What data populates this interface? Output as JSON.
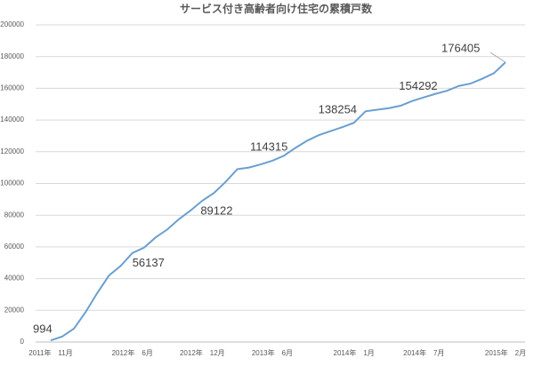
{
  "chart_data": {
    "type": "line",
    "title": "サービス付き高齢者向け住宅の累積戸数",
    "categories": [
      "2011年　11月",
      null,
      null,
      null,
      null,
      null,
      null,
      "2012年　6月",
      null,
      null,
      null,
      null,
      null,
      "2012年　12月",
      null,
      null,
      null,
      null,
      null,
      "2013年　6月",
      null,
      null,
      null,
      null,
      null,
      null,
      "2014年　1月",
      null,
      null,
      null,
      null,
      null,
      "2014年　7月",
      null,
      null,
      null,
      null,
      null,
      null,
      "2015年　2月"
    ],
    "series": [
      {
        "color": "#6a9fd0",
        "values": [
          994,
          3500,
          8500,
          19000,
          31000,
          42000,
          48000,
          56137,
          59500,
          66000,
          71000,
          77500,
          83000,
          89122,
          94000,
          101000,
          109000,
          110000,
          112000,
          114315,
          117500,
          122500,
          127000,
          130500,
          133000,
          135500,
          138254,
          145500,
          146500,
          147500,
          149000,
          152000,
          154292,
          156500,
          158500,
          161500,
          163000,
          166000,
          169500,
          176405
        ],
        "value_labels": [
          "994",
          null,
          null,
          null,
          null,
          null,
          null,
          "56137",
          null,
          null,
          null,
          null,
          null,
          "89122",
          null,
          null,
          null,
          null,
          null,
          "114315",
          null,
          null,
          null,
          null,
          null,
          null,
          "138254",
          null,
          null,
          null,
          null,
          null,
          "154292",
          null,
          null,
          null,
          null,
          null,
          null,
          "176405"
        ]
      }
    ],
    "ylim": [
      0,
      200000
    ],
    "yticks": [
      0,
      20000,
      40000,
      60000,
      80000,
      100000,
      120000,
      140000,
      160000,
      180000,
      200000
    ],
    "grid": true
  }
}
